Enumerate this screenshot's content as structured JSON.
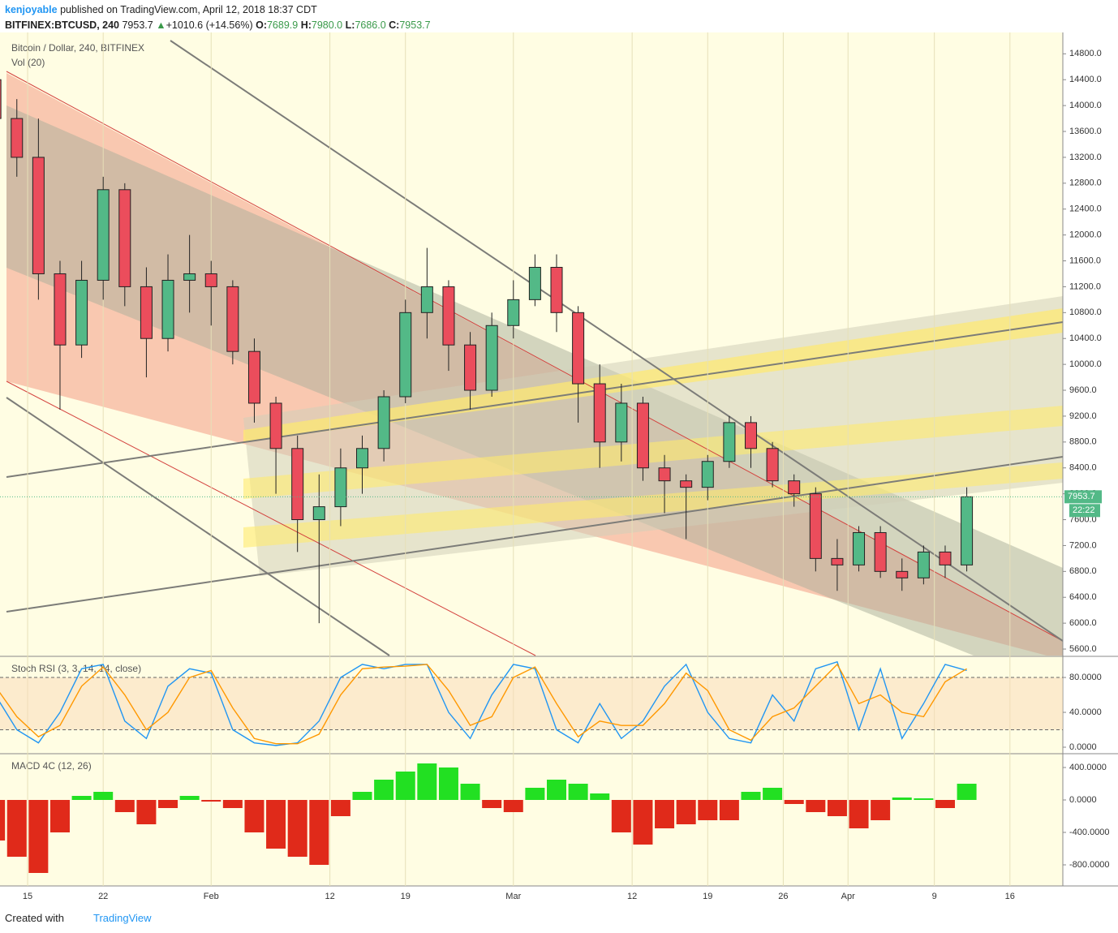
{
  "header": {
    "author": "kenjoyable",
    "published": "published on TradingView.com, April 12, 2018 18:37 CDT",
    "symbol": "BITFINEX:BTCUSD, 240",
    "last": "7953.7",
    "arrow": "▲",
    "change": "+1010.6 (+14.56%)",
    "o_label": "O:",
    "o": "7689.9",
    "h_label": "H:",
    "h": "7980.0",
    "l_label": "L:",
    "l": "7686.0",
    "c_label": "C:",
    "c": "7953.7"
  },
  "chart_data": [
    {
      "type": "candlestick",
      "title": "Bitcoin / Dollar, 240, BITFINEX",
      "subtitle": "Vol (20)",
      "up_color": "#53b987",
      "down_color": "#eb4d5c",
      "x": [
        -3,
        -1,
        1,
        3,
        5,
        7,
        9,
        11,
        13,
        15,
        17,
        19,
        21,
        23,
        25,
        27,
        29,
        31,
        33,
        35,
        37,
        39,
        41,
        43,
        45,
        47,
        49,
        51,
        53,
        55,
        57,
        59,
        61,
        63,
        65,
        67,
        69,
        71,
        73,
        75,
        77,
        79,
        81,
        83,
        85,
        87
      ],
      "open": [
        14400,
        13800,
        13200,
        11400,
        10300,
        11300,
        12700,
        11200,
        10400,
        11300,
        11400,
        11200,
        10200,
        9400,
        8700,
        7600,
        7800,
        8400,
        8700,
        9500,
        10800,
        11200,
        10300,
        9600,
        10600,
        11000,
        11500,
        10800,
        9700,
        8800,
        9400,
        8400,
        8200,
        8100,
        8500,
        9100,
        8700,
        8200,
        8000,
        7000,
        6900,
        7400,
        6800,
        6700,
        7100,
        6900
      ],
      "high": [
        14600,
        14100,
        13800,
        11600,
        11600,
        12900,
        12800,
        11500,
        11700,
        12000,
        11600,
        11300,
        10400,
        9500,
        8900,
        8300,
        8700,
        8900,
        9600,
        11000,
        11800,
        11300,
        10500,
        10800,
        11300,
        11700,
        11700,
        10900,
        10000,
        9700,
        9500,
        8600,
        8300,
        8600,
        9200,
        9200,
        8800,
        8300,
        8100,
        7300,
        7500,
        7500,
        7000,
        7200,
        7200,
        8100
      ],
      "low": [
        13600,
        12900,
        11000,
        9300,
        10100,
        11000,
        10900,
        9800,
        10200,
        10800,
        10600,
        10000,
        9100,
        8000,
        7100,
        6000,
        7500,
        8000,
        8500,
        9400,
        10400,
        9900,
        9300,
        9500,
        10400,
        10900,
        10500,
        9100,
        8400,
        8500,
        8200,
        7700,
        7300,
        7900,
        8400,
        8400,
        8100,
        7800,
        6800,
        6500,
        6800,
        6700,
        6500,
        6600,
        6700,
        6800
      ],
      "close": [
        13800,
        13200,
        11400,
        10300,
        11300,
        12700,
        11200,
        10400,
        11300,
        11400,
        11200,
        10200,
        9400,
        8700,
        7600,
        7800,
        8400,
        8700,
        9500,
        10800,
        11200,
        10300,
        9600,
        10600,
        11000,
        11500,
        10800,
        9700,
        8800,
        9400,
        8400,
        8200,
        8100,
        8500,
        9100,
        8700,
        8200,
        8000,
        7000,
        6900,
        7400,
        6800,
        6700,
        7100,
        6900,
        7953.7
      ],
      "price_label": 7953.7,
      "time_label": "22:22",
      "xlim": [
        -2.56,
        95.9
      ],
      "ylim": [
        5500,
        15130
      ],
      "yticks": [
        {
          "value": 14800,
          "label": "14800.0"
        },
        {
          "value": 14400,
          "label": "14400.0"
        },
        {
          "value": 14000,
          "label": "14000.0"
        },
        {
          "value": 13600,
          "label": "13600.0"
        },
        {
          "value": 13200,
          "label": "13200.0"
        },
        {
          "value": 12800,
          "label": "12800.0"
        },
        {
          "value": 12400,
          "label": "12400.0"
        },
        {
          "value": 12000,
          "label": "12000.0"
        },
        {
          "value": 11600,
          "label": "11600.0"
        },
        {
          "value": 11200,
          "label": "11200.0"
        },
        {
          "value": 10800,
          "label": "10800.0"
        },
        {
          "value": 10400,
          "label": "10400.0"
        },
        {
          "value": 10000,
          "label": "10000.0"
        },
        {
          "value": 9600,
          "label": "9600.0"
        },
        {
          "value": 9200,
          "label": "9200.0"
        },
        {
          "value": 8800,
          "label": "8800.0"
        },
        {
          "value": 8400,
          "label": "8400.0"
        },
        {
          "value": 8000,
          "label": "8000.0"
        },
        {
          "value": 7600,
          "label": "7600.0"
        },
        {
          "value": 7200,
          "label": "7200.0"
        },
        {
          "value": 6800,
          "label": "6800.0"
        },
        {
          "value": 6400,
          "label": "6400.0"
        },
        {
          "value": 6000,
          "label": "6000.0"
        },
        {
          "value": 5600,
          "label": "5600.0"
        }
      ]
    },
    {
      "type": "line",
      "title": "Stoch RSI (3, 3, 14, 14, close)",
      "x": [
        -3,
        -1,
        1,
        3,
        5,
        7,
        9,
        11,
        13,
        15,
        17,
        19,
        21,
        23,
        25,
        27,
        29,
        31,
        33,
        35,
        37,
        39,
        41,
        43,
        45,
        47,
        49,
        51,
        53,
        55,
        57,
        59,
        61,
        63,
        65,
        67,
        69,
        71,
        73,
        75,
        77,
        79,
        81,
        83,
        85,
        87
      ],
      "series": [
        {
          "color": "#2196f3",
          "values": [
            60,
            20,
            5,
            40,
            90,
            95,
            30,
            10,
            70,
            90,
            85,
            20,
            5,
            2,
            5,
            30,
            80,
            95,
            90,
            95,
            95,
            40,
            10,
            60,
            95,
            90,
            20,
            5,
            50,
            10,
            30,
            70,
            95,
            40,
            10,
            5,
            60,
            30,
            90,
            98,
            20,
            90,
            10,
            50,
            95,
            88
          ]
        },
        {
          "color": "#ff9800",
          "values": [
            70,
            35,
            12,
            25,
            70,
            92,
            60,
            20,
            40,
            80,
            88,
            45,
            10,
            4,
            4,
            15,
            60,
            90,
            92,
            93,
            95,
            65,
            25,
            35,
            80,
            92,
            50,
            12,
            30,
            25,
            25,
            50,
            85,
            65,
            20,
            8,
            35,
            45,
            70,
            95,
            50,
            60,
            40,
            35,
            75,
            90
          ]
        }
      ],
      "levels": [
        20,
        80
      ],
      "xlim": [
        -2.56,
        95.9
      ],
      "ylim": [
        -6.5,
        103.3
      ],
      "yticks": [
        {
          "value": 80,
          "label": "80.0000"
        },
        {
          "value": 40,
          "label": "40.0000"
        },
        {
          "value": 0,
          "label": "0.0000"
        }
      ]
    },
    {
      "type": "bar",
      "title": "MACD 4C (12, 26)",
      "up_color": "#22e022",
      "down_color": "#e02a1a",
      "x": [
        -3,
        -1,
        1,
        3,
        5,
        7,
        9,
        11,
        13,
        15,
        17,
        19,
        21,
        23,
        25,
        27,
        29,
        31,
        33,
        35,
        37,
        39,
        41,
        43,
        45,
        47,
        49,
        51,
        53,
        55,
        57,
        59,
        61,
        63,
        65,
        67,
        69,
        71,
        73,
        75,
        77,
        79,
        81,
        83,
        85,
        87
      ],
      "values": [
        -500,
        -700,
        -900,
        -400,
        50,
        100,
        -150,
        -300,
        -100,
        50,
        -20,
        -100,
        -400,
        -600,
        -700,
        -800,
        -200,
        100,
        250,
        350,
        450,
        400,
        200,
        -100,
        -150,
        150,
        250,
        200,
        80,
        -400,
        -550,
        -350,
        -300,
        -250,
        -250,
        100,
        150,
        -50,
        -150,
        -200,
        -350,
        -250,
        30,
        20,
        -100,
        200
      ],
      "xlim": [
        -2.56,
        95.9
      ],
      "ylim": [
        -1060,
        560
      ],
      "yticks": [
        {
          "value": 400,
          "label": "400.0000"
        },
        {
          "value": 0,
          "label": "0.0000"
        },
        {
          "value": -400,
          "label": "-400.0000"
        },
        {
          "value": -800,
          "label": "-800.0000"
        }
      ],
      "xticks": [
        {
          "value": 0,
          "label": "15"
        },
        {
          "value": 7,
          "label": "22"
        },
        {
          "value": 17,
          "label": "Feb"
        },
        {
          "value": 28,
          "label": "12"
        },
        {
          "value": 35,
          "label": "19"
        },
        {
          "value": 45,
          "label": "Mar"
        },
        {
          "value": 56,
          "label": "12"
        },
        {
          "value": 63,
          "label": "19"
        },
        {
          "value": 70,
          "label": "26"
        },
        {
          "value": 76,
          "label": "Apr"
        },
        {
          "value": 84,
          "label": "9"
        },
        {
          "value": 91,
          "label": "16"
        }
      ]
    }
  ],
  "footer": {
    "created": "Created with",
    "brand": "TradingView"
  }
}
